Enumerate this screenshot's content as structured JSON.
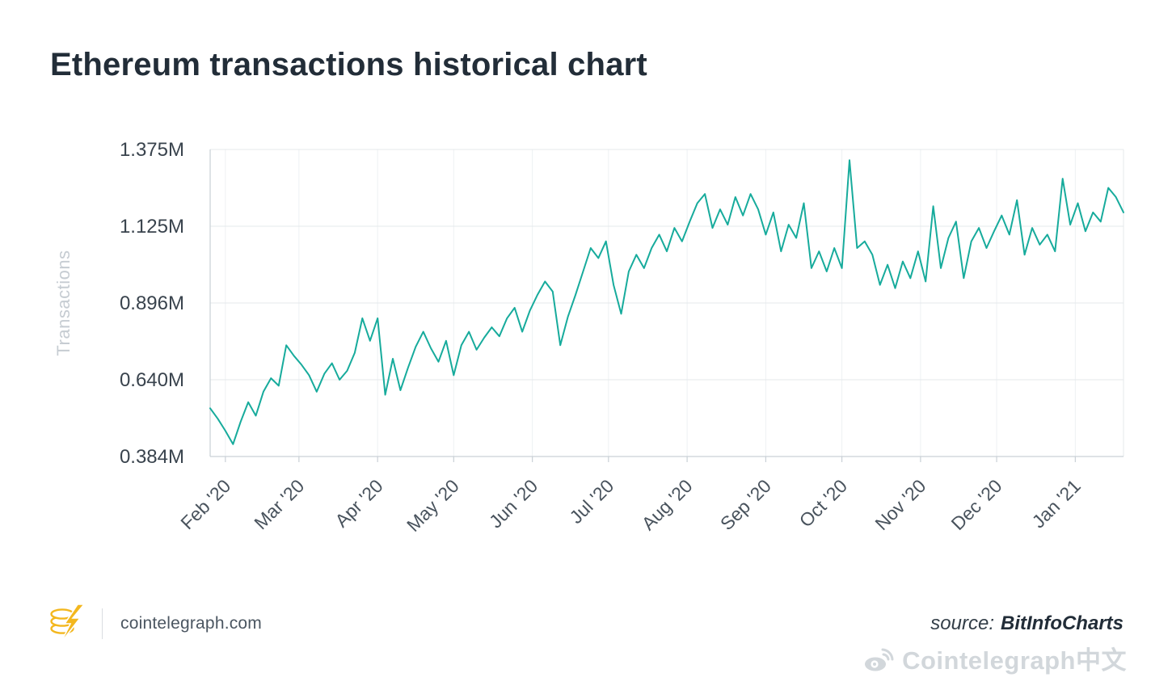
{
  "chart_data": {
    "type": "line",
    "title": "Ethereum transactions historical chart",
    "ylabel": "Transactions",
    "xlabel": "",
    "unit": "transactions per day (millions)",
    "line_color": "#17ab9c",
    "grid": true,
    "legend": "none",
    "y_ticks": [
      {
        "label": "1.375M",
        "value": 1.375
      },
      {
        "label": "1.125M",
        "value": 1.125
      },
      {
        "label": "0.896M",
        "value": 0.896
      },
      {
        "label": "0.640M",
        "value": 0.64
      },
      {
        "label": "0.384M",
        "value": 0.384
      }
    ],
    "x_ticks": [
      {
        "label": "Feb '20",
        "day": 6
      },
      {
        "label": "Mar '20",
        "day": 35
      },
      {
        "label": "Apr '20",
        "day": 66
      },
      {
        "label": "May '20",
        "day": 96
      },
      {
        "label": "Jun '20",
        "day": 127
      },
      {
        "label": "Jul '20",
        "day": 157
      },
      {
        "label": "Aug '20",
        "day": 188
      },
      {
        "label": "Sep '20",
        "day": 219
      },
      {
        "label": "Oct '20",
        "day": 249
      },
      {
        "label": "Nov '20",
        "day": 280
      },
      {
        "label": "Dec '20",
        "day": 310
      },
      {
        "label": "Jan '21",
        "day": 341
      }
    ],
    "x_range_days": [
      0,
      360
    ],
    "series": [
      {
        "name": "Transactions",
        "start_day": 0,
        "sample_interval_days": 3,
        "values_unit": "M",
        "values": [
          0.545,
          0.51,
          0.47,
          0.425,
          0.5,
          0.565,
          0.52,
          0.6,
          0.645,
          0.62,
          0.755,
          0.72,
          0.69,
          0.655,
          0.6,
          0.66,
          0.695,
          0.64,
          0.67,
          0.73,
          0.845,
          0.77,
          0.845,
          0.59,
          0.71,
          0.605,
          0.68,
          0.75,
          0.8,
          0.745,
          0.7,
          0.77,
          0.655,
          0.755,
          0.8,
          0.74,
          0.78,
          0.815,
          0.785,
          0.845,
          0.88,
          0.8,
          0.87,
          0.92,
          0.96,
          0.93,
          0.755,
          0.85,
          0.92,
          0.99,
          1.06,
          1.03,
          1.08,
          0.95,
          0.86,
          0.99,
          1.04,
          1.0,
          1.06,
          1.1,
          1.05,
          1.12,
          1.08,
          1.14,
          1.2,
          1.23,
          1.12,
          1.18,
          1.13,
          1.22,
          1.16,
          1.23,
          1.18,
          1.1,
          1.17,
          1.05,
          1.13,
          1.09,
          1.2,
          1.0,
          1.05,
          0.99,
          1.06,
          1.0,
          1.34,
          1.06,
          1.08,
          1.04,
          0.95,
          1.01,
          0.94,
          1.02,
          0.97,
          1.05,
          0.96,
          1.19,
          1.0,
          1.09,
          1.14,
          0.97,
          1.08,
          1.12,
          1.06,
          1.11,
          1.16,
          1.1,
          1.21,
          1.04,
          1.12,
          1.07,
          1.1,
          1.05,
          1.28,
          1.13,
          1.2,
          1.11,
          1.17,
          1.14,
          1.25,
          1.22,
          1.17
        ]
      }
    ],
    "colors": {
      "grid_h": "#e4e8eb",
      "grid_v": "#eef1f3",
      "axis": "#c9d0d6",
      "y_tick_text": "#39434d",
      "x_tick_text": "#49535d",
      "axis_title_text": "#c6ccd2"
    }
  },
  "footer": {
    "site": "cointelegraph.com",
    "source_label": "source:",
    "source_name": "BitInfoCharts",
    "watermark": "Cointelegraph中文"
  }
}
